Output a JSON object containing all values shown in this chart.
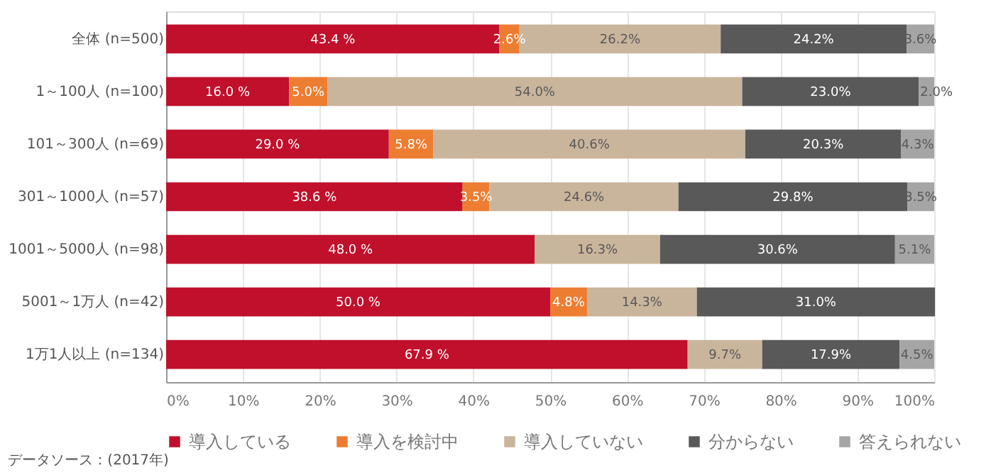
{
  "chart_data": {
    "type": "bar",
    "orientation": "horizontal",
    "stacked": true,
    "categories": [
      "全体 (n=500)",
      "1～100人 (n=100)",
      "101～300人 (n=69)",
      "301～1000人 (n=57)",
      "1001～5000人 (n=98)",
      "5001～1万人 (n=42)",
      "1万1人以上 (n=134)"
    ],
    "series": [
      {
        "name": "導入している",
        "color": "#c0102c",
        "values": [
          43.4,
          16.0,
          29.0,
          38.6,
          48.0,
          50.0,
          67.9
        ],
        "value_labels": [
          "43.4 %",
          "16.0 %",
          "29.0 %",
          "38.6 %",
          "48.0 %",
          "50.0 %",
          "67.9 %"
        ]
      },
      {
        "name": "導入を検討中",
        "color": "#ed7d31",
        "values": [
          2.6,
          5.0,
          5.8,
          3.5,
          null,
          4.8,
          null
        ],
        "value_labels": [
          "2.6%",
          "5.0%",
          "5.8%",
          "3.5%",
          null,
          "4.8%",
          null
        ]
      },
      {
        "name": "導入していない",
        "color": "#c9b59c",
        "values": [
          26.2,
          54.0,
          40.6,
          24.6,
          16.3,
          14.3,
          9.7
        ],
        "value_labels": [
          "26.2%",
          "54.0%",
          "40.6%",
          "24.6%",
          "16.3%",
          "14.3%",
          "9.7%"
        ]
      },
      {
        "name": "分からない",
        "color": "#595959",
        "values": [
          24.2,
          23.0,
          20.3,
          29.8,
          30.6,
          31.0,
          17.9
        ],
        "value_labels": [
          "24.2%",
          "23.0%",
          "20.3%",
          "29.8%",
          "30.6%",
          "31.0%",
          "17.9%"
        ]
      },
      {
        "name": "答えられない",
        "color": "#a5a5a5",
        "values": [
          3.6,
          2.0,
          4.3,
          3.5,
          5.1,
          null,
          4.5
        ],
        "value_labels": [
          "3.6%",
          "2.0%",
          "4.3%",
          "3.5%",
          "5.1%",
          null,
          "4.5%"
        ]
      }
    ],
    "xlim": [
      0,
      100
    ],
    "xticks": [
      {
        "value": 0,
        "label": "0%"
      },
      {
        "value": 10,
        "label": "10%"
      },
      {
        "value": 20,
        "label": "20%"
      },
      {
        "value": 30,
        "label": "30%"
      },
      {
        "value": 40,
        "label": "40%"
      },
      {
        "value": 50,
        "label": "50%"
      },
      {
        "value": 60,
        "label": "60%"
      },
      {
        "value": 70,
        "label": "70%"
      },
      {
        "value": 80,
        "label": "80%"
      },
      {
        "value": 90,
        "label": "90%"
      },
      {
        "value": 100,
        "label": "100%"
      }
    ],
    "grid": "x",
    "legend": "bottom",
    "annotations": [
      "データソース：(2017年)"
    ]
  }
}
